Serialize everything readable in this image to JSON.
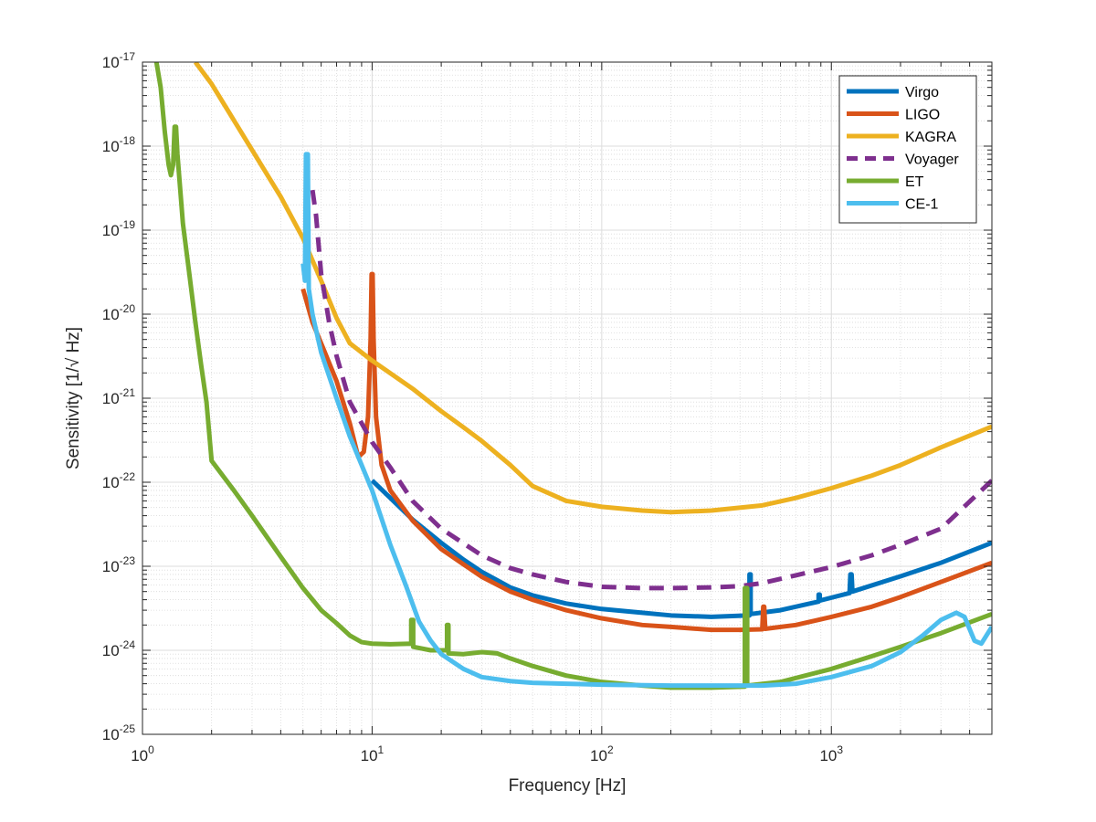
{
  "chart_data": {
    "type": "line",
    "title": "",
    "xlabel": "Frequency [Hz]",
    "ylabel": "Sensitivity [1/√ Hz]",
    "xscale": "log",
    "yscale": "log",
    "xlim": [
      1,
      5000
    ],
    "ylim": [
      1e-25,
      1e-17
    ],
    "grid": true,
    "minor_grid": true,
    "legend_position": "top-right",
    "x_ticks": [
      {
        "value": 1,
        "base": "10",
        "exp": "0"
      },
      {
        "value": 10,
        "base": "10",
        "exp": "1"
      },
      {
        "value": 100,
        "base": "10",
        "exp": "2"
      },
      {
        "value": 1000,
        "base": "10",
        "exp": "3"
      }
    ],
    "y_ticks": [
      {
        "value": 1e-25,
        "base": "10",
        "exp": "-25"
      },
      {
        "value": 1e-24,
        "base": "10",
        "exp": "-24"
      },
      {
        "value": 1e-23,
        "base": "10",
        "exp": "-23"
      },
      {
        "value": 1e-22,
        "base": "10",
        "exp": "-22"
      },
      {
        "value": 1e-21,
        "base": "10",
        "exp": "-21"
      },
      {
        "value": 1e-20,
        "base": "10",
        "exp": "-20"
      },
      {
        "value": 1e-19,
        "base": "10",
        "exp": "-19"
      },
      {
        "value": 1e-18,
        "base": "10",
        "exp": "-18"
      },
      {
        "value": 1e-17,
        "base": "10",
        "exp": "-17"
      }
    ],
    "series": [
      {
        "name": "Virgo",
        "color": "#0072BD",
        "dashed": false,
        "points": [
          [
            10,
            1.05e-22
          ],
          [
            12,
            6.5e-23
          ],
          [
            15,
            3.6e-23
          ],
          [
            20,
            1.9e-23
          ],
          [
            25,
            1.2e-23
          ],
          [
            30,
            8.6e-24
          ],
          [
            40,
            5.6e-24
          ],
          [
            50,
            4.5e-24
          ],
          [
            70,
            3.6e-24
          ],
          [
            100,
            3.1e-24
          ],
          [
            150,
            2.8e-24
          ],
          [
            200,
            2.6e-24
          ],
          [
            300,
            2.5e-24
          ],
          [
            430,
            2.6e-24
          ],
          [
            440,
            2.6e-24
          ],
          [
            440,
            8e-24
          ],
          [
            445,
            8e-24
          ],
          [
            445,
            2.7e-24
          ],
          [
            600,
            3e-24
          ],
          [
            880,
            3.8e-24
          ],
          [
            880,
            4.6e-24
          ],
          [
            890,
            4.6e-24
          ],
          [
            890,
            3.9e-24
          ],
          [
            1200,
            4.8e-24
          ],
          [
            1210,
            8e-24
          ],
          [
            1225,
            8e-24
          ],
          [
            1235,
            5e-24
          ],
          [
            2000,
            7.6e-24
          ],
          [
            3000,
            1.1e-23
          ],
          [
            5000,
            1.9e-23
          ]
        ]
      },
      {
        "name": "LIGO",
        "color": "#D95319",
        "dashed": false,
        "points": [
          [
            5,
            2e-20
          ],
          [
            5.5,
            8e-21
          ],
          [
            6,
            4.5e-21
          ],
          [
            7,
            1.6e-21
          ],
          [
            8,
            5e-22
          ],
          [
            8.7,
            2e-22
          ],
          [
            9.2,
            2.3e-22
          ],
          [
            9.6,
            6e-22
          ],
          [
            9.85,
            5e-21
          ],
          [
            9.95,
            3e-20
          ],
          [
            10.05,
            3e-20
          ],
          [
            10.15,
            5e-21
          ],
          [
            10.4,
            6e-22
          ],
          [
            11,
            1.6e-22
          ],
          [
            12,
            8e-23
          ],
          [
            15,
            3.5e-23
          ],
          [
            20,
            1.6e-23
          ],
          [
            30,
            7.5e-24
          ],
          [
            40,
            5e-24
          ],
          [
            50,
            4e-24
          ],
          [
            70,
            3e-24
          ],
          [
            100,
            2.4e-24
          ],
          [
            150,
            2e-24
          ],
          [
            200,
            1.9e-24
          ],
          [
            300,
            1.75e-24
          ],
          [
            400,
            1.75e-24
          ],
          [
            500,
            1.78e-24
          ],
          [
            505,
            3.3e-24
          ],
          [
            510,
            3.3e-24
          ],
          [
            515,
            1.8e-24
          ],
          [
            700,
            2e-24
          ],
          [
            1000,
            2.5e-24
          ],
          [
            1500,
            3.3e-24
          ],
          [
            2000,
            4.3e-24
          ],
          [
            3000,
            6.5e-24
          ],
          [
            5000,
            1.1e-23
          ]
        ]
      },
      {
        "name": "KAGRA",
        "color": "#EDB120",
        "dashed": false,
        "points": [
          [
            1.7,
            1e-17
          ],
          [
            2,
            5.5e-18
          ],
          [
            3,
            9e-19
          ],
          [
            4,
            2.5e-19
          ],
          [
            5,
            8e-20
          ],
          [
            6,
            2.5e-20
          ],
          [
            7,
            9e-21
          ],
          [
            8,
            4.5e-21
          ],
          [
            10,
            2.8e-21
          ],
          [
            15,
            1.3e-21
          ],
          [
            20,
            7e-22
          ],
          [
            25,
            4.5e-22
          ],
          [
            30,
            3.1e-22
          ],
          [
            40,
            1.6e-22
          ],
          [
            50,
            9e-23
          ],
          [
            70,
            6e-23
          ],
          [
            100,
            5.1e-23
          ],
          [
            150,
            4.6e-23
          ],
          [
            200,
            4.4e-23
          ],
          [
            300,
            4.6e-23
          ],
          [
            500,
            5.3e-23
          ],
          [
            700,
            6.5e-23
          ],
          [
            1000,
            8.5e-23
          ],
          [
            1500,
            1.2e-22
          ],
          [
            2000,
            1.6e-22
          ],
          [
            3000,
            2.6e-22
          ],
          [
            5000,
            4.6e-22
          ]
        ]
      },
      {
        "name": "Voyager",
        "color": "#7E2F8E",
        "dashed": true,
        "points": [
          [
            5.5,
            3e-19
          ],
          [
            5.7,
            1.5e-19
          ],
          [
            6,
            3e-20
          ],
          [
            6.5,
            8e-21
          ],
          [
            7,
            3.2e-21
          ],
          [
            8,
            9e-22
          ],
          [
            10,
            3e-22
          ],
          [
            12,
            1.5e-22
          ],
          [
            15,
            6e-23
          ],
          [
            20,
            2.8e-23
          ],
          [
            30,
            1.35e-23
          ],
          [
            40,
            9.5e-24
          ],
          [
            50,
            8e-24
          ],
          [
            70,
            6.5e-24
          ],
          [
            100,
            5.7e-24
          ],
          [
            150,
            5.5e-24
          ],
          [
            200,
            5.5e-24
          ],
          [
            300,
            5.6e-24
          ],
          [
            400,
            5.8e-24
          ],
          [
            500,
            6.3e-24
          ],
          [
            700,
            7.8e-24
          ],
          [
            1000,
            9.8e-24
          ],
          [
            1500,
            1.35e-23
          ],
          [
            2000,
            1.8e-23
          ],
          [
            3000,
            2.8e-23
          ],
          [
            5000,
            1.05e-22
          ]
        ]
      },
      {
        "name": "ET",
        "color": "#77AC30",
        "dashed": false,
        "points": [
          [
            1.15,
            1e-17
          ],
          [
            1.2,
            5e-18
          ],
          [
            1.25,
            1.5e-18
          ],
          [
            1.3,
            6e-19
          ],
          [
            1.33,
            4.5e-19
          ],
          [
            1.36,
            6e-19
          ],
          [
            1.38,
            1.7e-18
          ],
          [
            1.4,
            1.7e-18
          ],
          [
            1.42,
            8e-19
          ],
          [
            1.5,
            1.2e-19
          ],
          [
            1.6,
            3e-20
          ],
          [
            1.7,
            8e-21
          ],
          [
            1.8,
            2.5e-21
          ],
          [
            1.9,
            9e-22
          ],
          [
            2,
            1.8e-22
          ],
          [
            2.5,
            8e-23
          ],
          [
            3,
            4e-23
          ],
          [
            4,
            1.3e-23
          ],
          [
            5,
            5.5e-24
          ],
          [
            6,
            3e-24
          ],
          [
            7,
            2.1e-24
          ],
          [
            8,
            1.5e-24
          ],
          [
            9,
            1.25e-24
          ],
          [
            10,
            1.2e-24
          ],
          [
            12,
            1.18e-24
          ],
          [
            14.8,
            1.2e-24
          ],
          [
            14.8,
            2.3e-24
          ],
          [
            15.1,
            2.3e-24
          ],
          [
            15.1,
            1.1e-24
          ],
          [
            18,
            1e-24
          ],
          [
            21.2,
            1e-24
          ],
          [
            21.2,
            2e-24
          ],
          [
            21.5,
            2e-24
          ],
          [
            21.5,
            9.2e-25
          ],
          [
            25,
            9e-25
          ],
          [
            30,
            9.5e-25
          ],
          [
            35,
            9.2e-25
          ],
          [
            40,
            8e-25
          ],
          [
            50,
            6.5e-25
          ],
          [
            70,
            5e-25
          ],
          [
            100,
            4.2e-25
          ],
          [
            150,
            3.8e-25
          ],
          [
            200,
            3.6e-25
          ],
          [
            300,
            3.6e-25
          ],
          [
            420,
            3.7e-25
          ],
          [
            420,
            5.5e-24
          ],
          [
            430,
            5.5e-24
          ],
          [
            430,
            3.8e-25
          ],
          [
            600,
            4.2e-25
          ],
          [
            1000,
            6e-25
          ],
          [
            1500,
            8.5e-25
          ],
          [
            2000,
            1.1e-24
          ],
          [
            3000,
            1.6e-24
          ],
          [
            5000,
            2.7e-24
          ]
        ]
      },
      {
        "name": "CE-1",
        "color": "#4DBEEE",
        "dashed": false,
        "points": [
          [
            5,
            4e-20
          ],
          [
            5.1,
            2.5e-20
          ],
          [
            5.15,
            8e-19
          ],
          [
            5.25,
            8e-19
          ],
          [
            5.3,
            2e-20
          ],
          [
            5.5,
            1e-20
          ],
          [
            6,
            3.5e-21
          ],
          [
            7,
            1e-21
          ],
          [
            8,
            3.5e-22
          ],
          [
            10,
            8e-23
          ],
          [
            12,
            1.8e-23
          ],
          [
            14,
            6e-24
          ],
          [
            16,
            2.2e-24
          ],
          [
            18,
            1.3e-24
          ],
          [
            20,
            9e-25
          ],
          [
            25,
            6e-25
          ],
          [
            30,
            4.8e-25
          ],
          [
            40,
            4.3e-25
          ],
          [
            50,
            4.1e-25
          ],
          [
            70,
            4e-25
          ],
          [
            100,
            3.9e-25
          ],
          [
            200,
            3.8e-25
          ],
          [
            300,
            3.8e-25
          ],
          [
            500,
            3.8e-25
          ],
          [
            700,
            4e-25
          ],
          [
            1000,
            4.8e-25
          ],
          [
            1500,
            6.5e-25
          ],
          [
            2000,
            9.5e-25
          ],
          [
            2500,
            1.5e-24
          ],
          [
            3000,
            2.3e-24
          ],
          [
            3500,
            2.8e-24
          ],
          [
            3800,
            2.5e-24
          ],
          [
            4200,
            1.3e-24
          ],
          [
            4500,
            1.2e-24
          ],
          [
            5000,
            1.9e-24
          ]
        ]
      }
    ]
  }
}
